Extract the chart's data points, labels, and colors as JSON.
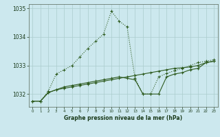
{
  "title": "Graphe pression niveau de la mer (hPa)",
  "bg_color": "#cce8ee",
  "grid_color": "#aacccc",
  "line_color": "#2d5a1e",
  "xlim": [
    -0.5,
    23.5
  ],
  "ylim": [
    1031.55,
    1035.15
  ],
  "yticks": [
    1032,
    1033,
    1034,
    1035
  ],
  "xticks": [
    0,
    1,
    2,
    3,
    4,
    5,
    6,
    7,
    8,
    9,
    10,
    11,
    12,
    13,
    14,
    15,
    16,
    17,
    18,
    19,
    20,
    21,
    22,
    23
  ],
  "line1_x": [
    0,
    1,
    2,
    3,
    4,
    5,
    6,
    7,
    8,
    9,
    10,
    11,
    12,
    13,
    14,
    15,
    16,
    17,
    18,
    19,
    20,
    21,
    22,
    23
  ],
  "line1_y": [
    1031.75,
    1031.75,
    1032.05,
    1032.15,
    1032.2,
    1032.25,
    1032.3,
    1032.35,
    1032.4,
    1032.45,
    1032.5,
    1032.55,
    1032.6,
    1032.65,
    1032.7,
    1032.75,
    1032.8,
    1032.85,
    1032.9,
    1032.92,
    1032.95,
    1033.0,
    1033.1,
    1033.15
  ],
  "line2_x": [
    0,
    1,
    2,
    3,
    4,
    5,
    6,
    7,
    8,
    9,
    10,
    11,
    12,
    13,
    14,
    15,
    16,
    17,
    18,
    19,
    20,
    21,
    22,
    23
  ],
  "line2_y": [
    1031.75,
    1031.75,
    1032.05,
    1032.15,
    1032.25,
    1032.3,
    1032.35,
    1032.4,
    1032.45,
    1032.5,
    1032.55,
    1032.6,
    1032.55,
    1032.5,
    1032.0,
    1032.0,
    1032.0,
    1032.6,
    1032.7,
    1032.75,
    1032.85,
    1032.9,
    1033.1,
    1033.15
  ],
  "line3_x": [
    0,
    1,
    2,
    3,
    4,
    5,
    6,
    7,
    8,
    9,
    10,
    11,
    12,
    13,
    14,
    15,
    16,
    17,
    18,
    19,
    20,
    21,
    22,
    23
  ],
  "line3_y": [
    1031.75,
    1031.75,
    1032.1,
    1032.7,
    1032.85,
    1033.0,
    1033.3,
    1033.6,
    1033.85,
    1034.1,
    1034.9,
    1034.55,
    1034.35,
    1032.55,
    1032.0,
    1032.0,
    1032.6,
    1032.72,
    1032.82,
    1032.9,
    1033.0,
    1033.1,
    1033.15,
    1033.2
  ]
}
